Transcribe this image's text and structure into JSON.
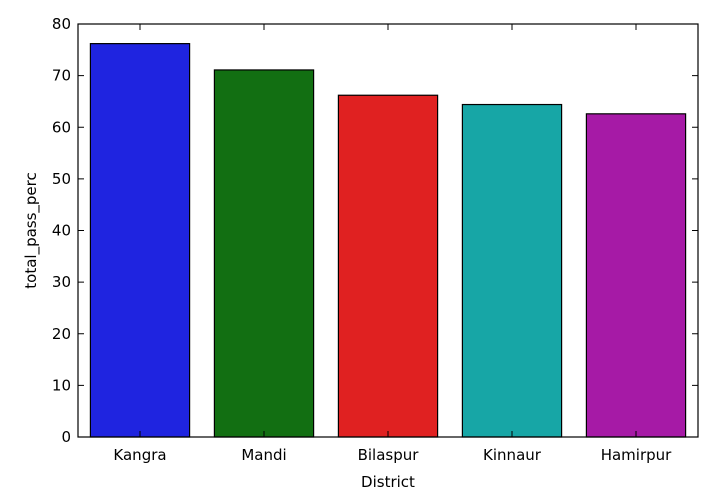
{
  "chart_data": {
    "type": "bar",
    "title": "",
    "xlabel": "District",
    "ylabel": "total_pass_perc",
    "categories": [
      "Kangra",
      "Mandi",
      "Bilaspur",
      "Kinnaur",
      "Hamirpur"
    ],
    "values": [
      76.2,
      71.1,
      66.2,
      64.4,
      62.6
    ],
    "colors": [
      "#1f24e0",
      "#126f12",
      "#e02121",
      "#17a6a6",
      "#a61aa6"
    ],
    "ylim": [
      0,
      80
    ],
    "yticks": [
      0,
      10,
      20,
      30,
      40,
      50,
      60,
      70,
      80
    ],
    "grid": false,
    "legend": null
  }
}
